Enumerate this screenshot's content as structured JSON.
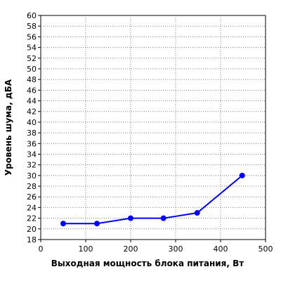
{
  "chart_data": {
    "type": "line",
    "xlabel": "Выходная мощность блока питания, Вт",
    "ylabel": "Уровень шума, дБА",
    "xlim": [
      0,
      500
    ],
    "ylim": [
      18,
      60
    ],
    "x_ticks": [
      0,
      100,
      200,
      300,
      400,
      500
    ],
    "y_ticks": [
      18,
      20,
      22,
      24,
      26,
      28,
      30,
      32,
      34,
      36,
      38,
      40,
      42,
      44,
      46,
      48,
      50,
      52,
      54,
      56,
      58,
      60
    ],
    "grid": true,
    "series": [
      {
        "color": "#0000ee",
        "points": [
          {
            "x": 50,
            "y": 21
          },
          {
            "x": 125,
            "y": 21
          },
          {
            "x": 200,
            "y": 22
          },
          {
            "x": 273,
            "y": 22
          },
          {
            "x": 348,
            "y": 23
          },
          {
            "x": 448,
            "y": 30
          }
        ]
      }
    ]
  }
}
